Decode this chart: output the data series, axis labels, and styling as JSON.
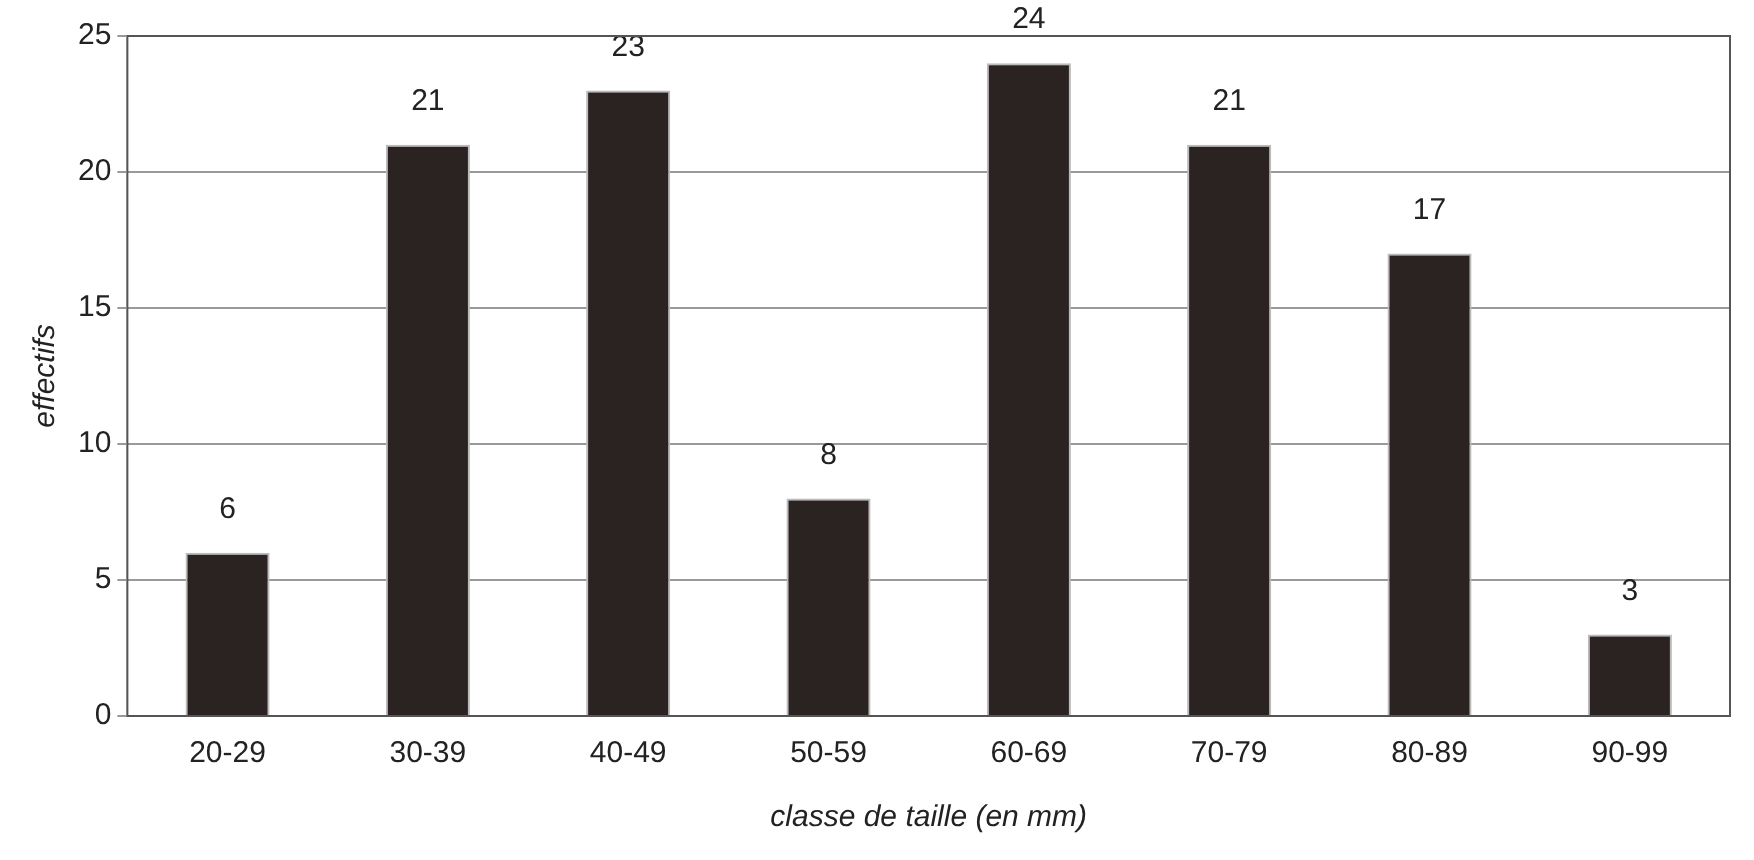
{
  "chart_data": {
    "type": "bar",
    "xlabel": "classe de taille (en mm)",
    "ylabel": "effectifs",
    "categories": [
      "20-29",
      "30-39",
      "40-49",
      "50-59",
      "60-69",
      "70-79",
      "80-89",
      "90-99"
    ],
    "values": [
      6,
      21,
      23,
      8,
      24,
      21,
      17,
      3
    ],
    "color": "#2b2222",
    "ylim": [
      0,
      25
    ],
    "yticks": [
      0,
      5,
      10,
      15,
      20,
      25
    ],
    "grid": "y",
    "data_labels": true,
    "legend": false
  }
}
